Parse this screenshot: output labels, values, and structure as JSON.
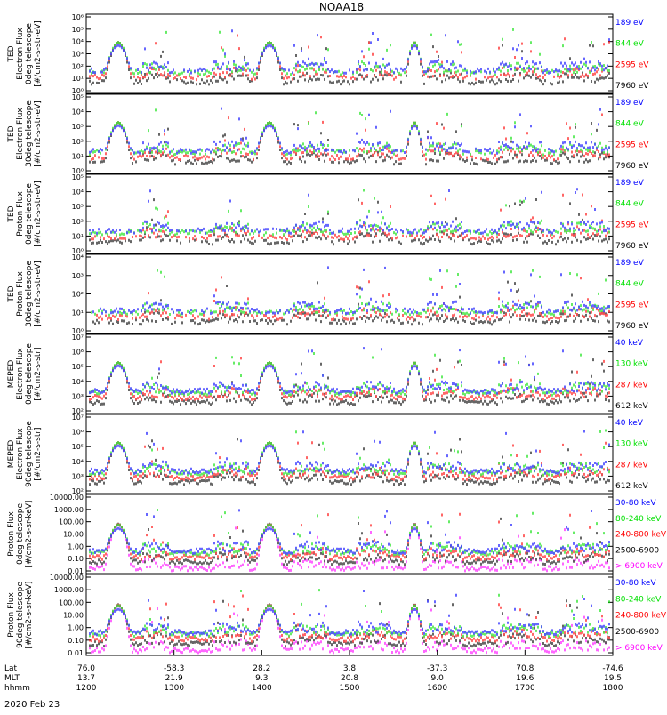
{
  "title": "NOAA18",
  "date_label": "2020 Feb 23",
  "colors": {
    "blue": "#0000ff",
    "red": "#ff0000",
    "green": "#00e000",
    "black": "#000000",
    "magenta": "#ff00ff"
  },
  "chart_data": {
    "type": "line",
    "x_axis": {
      "range": [
        1200,
        1800
      ],
      "row_labels": [
        "Lat",
        "MLT",
        "hhmm"
      ],
      "ticks": [
        {
          "lat": "76.0",
          "mlt": "13.7",
          "hhmm": "1200"
        },
        {
          "lat": "-58.3",
          "mlt": "21.9",
          "hhmm": "1300"
        },
        {
          "lat": "28.2",
          "mlt": "9.3",
          "hhmm": "1400"
        },
        {
          "lat": "3.8",
          "mlt": "20.8",
          "hhmm": "1500"
        },
        {
          "lat": "-37.3",
          "mlt": "9.0",
          "hhmm": "1600"
        },
        {
          "lat": "70.8",
          "mlt": "19.6",
          "hhmm": "1700"
        },
        {
          "lat": "-74.6",
          "mlt": "19.5",
          "hhmm": "1800"
        }
      ]
    },
    "panels": [
      {
        "ylabel": [
          "TED",
          "Electron Flux",
          "0deg telescope",
          "[#/cm2-s-str-eV]"
        ],
        "yticks": [
          "10⁶",
          "10⁵",
          "10⁴",
          "10³",
          "10²",
          "10¹",
          "10⁰"
        ],
        "series": [
          {
            "name": "7960 eV",
            "color": "black"
          },
          {
            "name": "2595 eV",
            "color": "red"
          },
          {
            "name": "844 eV",
            "color": "green"
          },
          {
            "name": "189 eV",
            "color": "blue"
          }
        ]
      },
      {
        "ylabel": [
          "TED",
          "Electron Flux",
          "30deg telescope",
          "[#/cm2-s-str-eV]"
        ],
        "yticks": [
          "10⁵",
          "10⁴",
          "10³",
          "10²",
          "10¹",
          "10⁰"
        ],
        "series": [
          {
            "name": "7960 eV",
            "color": "black"
          },
          {
            "name": "2595 eV",
            "color": "red"
          },
          {
            "name": "844 eV",
            "color": "green"
          },
          {
            "name": "189 eV",
            "color": "blue"
          }
        ]
      },
      {
        "ylabel": [
          "TED",
          "Proton Flux",
          "0deg telescope",
          "[#/cm2-s-str-eV]"
        ],
        "yticks": [
          "10⁵",
          "10⁴",
          "10³",
          "10²",
          "10¹",
          "10⁰"
        ],
        "series": [
          {
            "name": "7960 eV",
            "color": "black"
          },
          {
            "name": "2595 eV",
            "color": "red"
          },
          {
            "name": "844 eV",
            "color": "green"
          },
          {
            "name": "189 eV",
            "color": "blue"
          }
        ]
      },
      {
        "ylabel": [
          "TED",
          "Proton Flux",
          "30deg telescope",
          "[#/cm2-s-str-eV]"
        ],
        "yticks": [
          "10⁴",
          "10³",
          "10²",
          "10¹",
          "10⁰"
        ],
        "series": [
          {
            "name": "7960 eV",
            "color": "black"
          },
          {
            "name": "2595 eV",
            "color": "red"
          },
          {
            "name": "844 eV",
            "color": "green"
          },
          {
            "name": "189 eV",
            "color": "blue"
          }
        ]
      },
      {
        "ylabel": [
          "MEPED",
          "Electron Flux",
          "0deg telescope",
          "[#/cm2-s-str]"
        ],
        "yticks": [
          "10⁷",
          "10⁶",
          "10⁵",
          "10⁴",
          "10³",
          "10²"
        ],
        "series": [
          {
            "name": "612 keV",
            "color": "black"
          },
          {
            "name": "287 keV",
            "color": "red"
          },
          {
            "name": "130 keV",
            "color": "green"
          },
          {
            "name": "40 keV",
            "color": "blue"
          }
        ]
      },
      {
        "ylabel": [
          "MEPED",
          "Electron Flux",
          "90deg telescope",
          "[#/cm2-s-str]"
        ],
        "yticks": [
          "10⁷",
          "10⁶",
          "10⁵",
          "10⁴",
          "10³",
          "10²"
        ],
        "series": [
          {
            "name": "612 keV",
            "color": "black"
          },
          {
            "name": "287 keV",
            "color": "red"
          },
          {
            "name": "130 keV",
            "color": "green"
          },
          {
            "name": "40 keV",
            "color": "blue"
          }
        ]
      },
      {
        "ylabel": [
          "Proton Flux",
          "0deg telescope",
          "[#/cm2-s-sr-keV]"
        ],
        "yticks": [
          "10000.00",
          "1000.00",
          "100.00",
          "10.00",
          "1.00",
          "0.10",
          "0.01"
        ],
        "series": [
          {
            "name": "> 6900 keV",
            "color": "magenta"
          },
          {
            "name": "2500-6900",
            "color": "black"
          },
          {
            "name": "240-800 keV",
            "color": "red"
          },
          {
            "name": "80-240 keV",
            "color": "green"
          },
          {
            "name": "30-80 keV",
            "color": "blue"
          }
        ]
      },
      {
        "ylabel": [
          "Proton Flux",
          "90deg telescope",
          "[#/cm2-s-sr-keV]"
        ],
        "yticks": [
          "10000.00",
          "1000.00",
          "100.00",
          "10.00",
          "1.00",
          "0.10",
          "0.01"
        ],
        "series": [
          {
            "name": "> 6900 keV",
            "color": "magenta"
          },
          {
            "name": "2500-6900",
            "color": "black"
          },
          {
            "name": "240-800 keV",
            "color": "red"
          },
          {
            "name": "80-240 keV",
            "color": "green"
          },
          {
            "name": "30-80 keV",
            "color": "blue"
          }
        ]
      }
    ]
  }
}
